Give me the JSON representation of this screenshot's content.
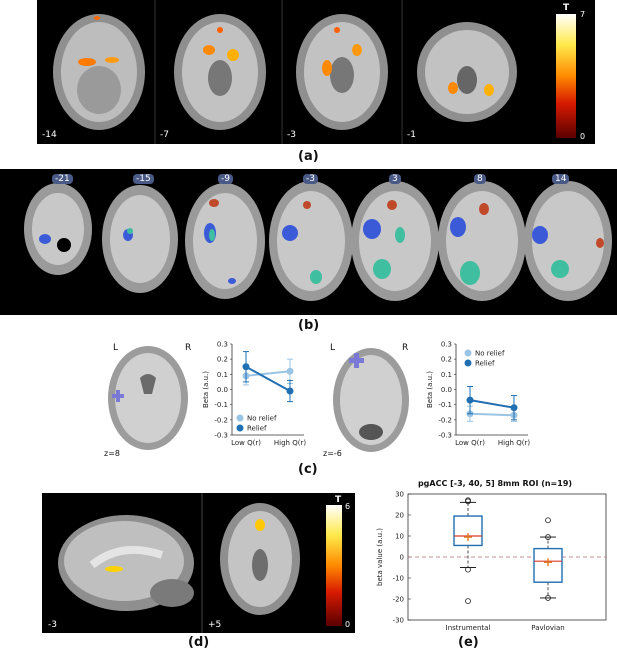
{
  "panels": {
    "a": {
      "label": "(a)",
      "slices": [
        "-14",
        "-7",
        "-3",
        "-1"
      ],
      "colorbar": {
        "title": "T",
        "max": "7",
        "min": "0",
        "colors": [
          "#ffffff",
          "#ffe94a",
          "#ff8a00",
          "#d71a00",
          "#5a0000"
        ]
      }
    },
    "b": {
      "label": "(b)",
      "slices": [
        "-21",
        "-15",
        "-9",
        "-3",
        "3",
        "8",
        "14"
      ]
    },
    "c": {
      "label": "(c)",
      "left_brain": {
        "L": "L",
        "R": "R",
        "z": "z=8"
      },
      "right_brain": {
        "L": "L",
        "R": "R",
        "z": "z=-6"
      },
      "chart_left": {
        "type": "line",
        "ylabel": "Beta (a.u.)",
        "categories": [
          "Low Q(r)",
          "High Q(r)"
        ],
        "yticks": [
          "0.3",
          "0.2",
          "0.1",
          "0.0",
          "-0.1",
          "-0.2",
          "-0.3"
        ],
        "ylim": [
          -0.3,
          0.3
        ],
        "series": [
          {
            "name": "No relief",
            "color": "#9ac4e4",
            "values": [
              0.09,
              0.12
            ],
            "err": [
              0.06,
              0.08
            ]
          },
          {
            "name": "Relief",
            "color": "#1f6fb2",
            "values": [
              0.15,
              -0.01
            ],
            "err": [
              0.1,
              0.07
            ]
          }
        ]
      },
      "chart_right": {
        "type": "line",
        "ylabel": "Beta (a.u.)",
        "categories": [
          "Low Q(r)",
          "High Q(r)"
        ],
        "yticks": [
          "0.3",
          "0.2",
          "0.1",
          "0.0",
          "-0.1",
          "-0.2",
          "-0.3"
        ],
        "ylim": [
          -0.3,
          0.3
        ],
        "series": [
          {
            "name": "No relief",
            "color": "#9ac4e4",
            "values": [
              -0.16,
              -0.17
            ],
            "err": [
              0.05,
              0.04
            ]
          },
          {
            "name": "Relief",
            "color": "#1f6fb2",
            "values": [
              -0.07,
              -0.12
            ],
            "err": [
              0.09,
              0.08
            ]
          }
        ]
      }
    },
    "d": {
      "label": "(d)",
      "slices": [
        "-3",
        "+5"
      ],
      "colorbar": {
        "title": "T",
        "max": "6",
        "min": "0"
      }
    },
    "e": {
      "label": "(e)",
      "chart_data": {
        "type": "box",
        "title": "pgACC [-3, 40, 5] 8mm ROI (n=19)",
        "ylabel": "beta value (a.u.)",
        "ylim": [
          -30,
          30
        ],
        "yticks": [
          "30",
          "20",
          "10",
          "0",
          "-10",
          "-20",
          "-30"
        ],
        "categories": [
          "Instrumental",
          "Pavlovian"
        ],
        "boxes": [
          {
            "name": "Instrumental",
            "q1": 5.5,
            "median": 10,
            "q3": 19.5,
            "whisker_low": -5,
            "whisker_high": 26,
            "mean": 9.5,
            "outliers": [
              -6,
              -21,
              27,
              26.5
            ]
          },
          {
            "name": "Pavlovian",
            "q1": -12,
            "median": -2,
            "q3": 4,
            "whisker_low": -19.5,
            "whisker_high": 9.5,
            "mean": -2.5,
            "outliers": [
              9.5,
              17.5,
              -19.5
            ]
          }
        ],
        "reference_line": 0
      }
    }
  }
}
